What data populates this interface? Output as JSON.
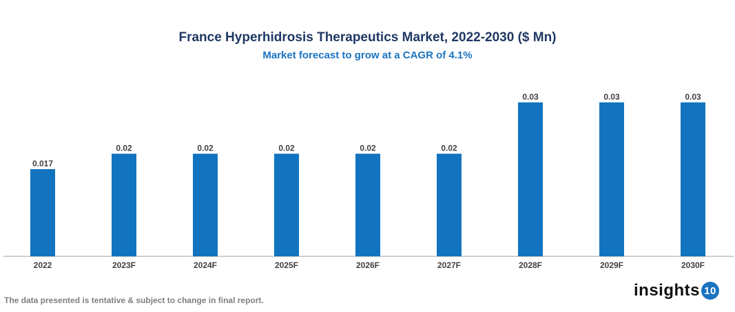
{
  "chart_data": {
    "type": "bar",
    "title": "France Hyperhidrosis Therapeutics Market, 2022-2030 ($ Mn)",
    "subtitle": "Market forecast to grow at a CAGR of 4.1%",
    "categories": [
      "2022",
      "2023F",
      "2024F",
      "2025F",
      "2026F",
      "2027F",
      "2028F",
      "2029F",
      "2030F"
    ],
    "values": [
      0.017,
      0.02,
      0.02,
      0.02,
      0.02,
      0.02,
      0.03,
      0.03,
      0.03
    ],
    "labels": [
      "0.017",
      "0.02",
      "0.02",
      "0.02",
      "0.02",
      "0.02",
      "0.03",
      "0.03",
      "0.03"
    ],
    "xlabel": "",
    "ylabel": "",
    "ylim": [
      0,
      0.03
    ],
    "grid": false,
    "bar_color": "#1274c0"
  },
  "footer": {
    "note": "The data presented is tentative & subject to change in final report.",
    "logo_text": "insights",
    "logo_badge": "10"
  }
}
